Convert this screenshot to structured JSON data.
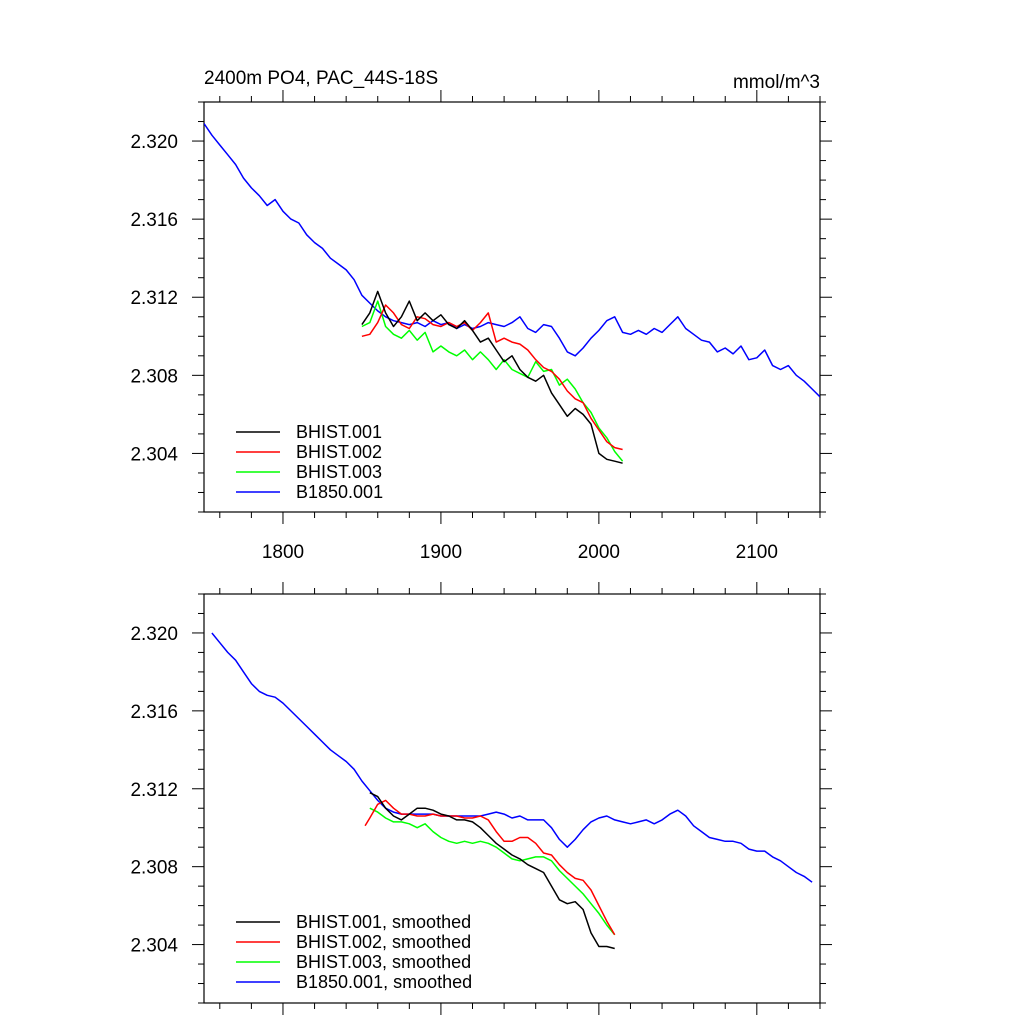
{
  "chart_data": [
    {
      "type": "line",
      "title": "2400m PO4, PAC_44S-18S",
      "units": "mmol/m^3",
      "xlim": [
        1750,
        2140
      ],
      "ylim": [
        2.301,
        2.322
      ],
      "xticks": [
        1800,
        1900,
        2000,
        2100
      ],
      "xtick_labels": [
        "1800",
        "1900",
        "2000",
        "2100"
      ],
      "yticks": [
        2.304,
        2.308,
        2.312,
        2.316,
        2.32
      ],
      "ytick_labels": [
        "2.304",
        "2.308",
        "2.312",
        "2.316",
        "2.320"
      ],
      "show_xtick_labels": true,
      "legend_position": "bottom-left",
      "series": [
        {
          "name": "BHIST.001",
          "color": "#000000",
          "x": [
            1850,
            1855,
            1860,
            1865,
            1870,
            1875,
            1880,
            1885,
            1890,
            1895,
            1900,
            1905,
            1910,
            1915,
            1920,
            1925,
            1930,
            1935,
            1940,
            1945,
            1950,
            1955,
            1960,
            1965,
            1970,
            1975,
            1980,
            1985,
            1990,
            1995,
            2000,
            2005,
            2010,
            2015
          ],
          "y": [
            2.3106,
            2.3112,
            2.3123,
            2.3112,
            2.3105,
            2.311,
            2.3118,
            2.3108,
            2.3112,
            2.3108,
            2.3111,
            2.3106,
            2.3104,
            2.3108,
            2.3103,
            2.3097,
            2.3099,
            2.3093,
            2.3087,
            2.309,
            2.3083,
            2.3079,
            2.3077,
            2.308,
            2.3071,
            2.3065,
            2.3059,
            2.3063,
            2.306,
            2.3055,
            2.304,
            2.3037,
            2.3036,
            2.3035
          ]
        },
        {
          "name": "BHIST.002",
          "color": "#ff0000",
          "x": [
            1850,
            1855,
            1860,
            1865,
            1870,
            1875,
            1880,
            1885,
            1890,
            1895,
            1900,
            1905,
            1910,
            1915,
            1920,
            1925,
            1930,
            1935,
            1940,
            1945,
            1950,
            1955,
            1960,
            1965,
            1970,
            1975,
            1980,
            1985,
            1990,
            1995,
            2000,
            2005,
            2010,
            2015
          ],
          "y": [
            2.31,
            2.3101,
            2.3107,
            2.3116,
            2.3112,
            2.3106,
            2.3104,
            2.311,
            2.3109,
            2.3106,
            2.3105,
            2.3107,
            2.3105,
            2.3107,
            2.3103,
            2.3107,
            2.3112,
            2.3097,
            2.3099,
            2.3097,
            2.3096,
            2.3093,
            2.3088,
            2.3084,
            2.3082,
            2.3078,
            2.3072,
            2.3068,
            2.3066,
            2.3058,
            2.3052,
            2.3046,
            2.3043,
            2.3042
          ]
        },
        {
          "name": "BHIST.003",
          "color": "#00ff00",
          "x": [
            1850,
            1855,
            1860,
            1865,
            1870,
            1875,
            1880,
            1885,
            1890,
            1895,
            1900,
            1905,
            1910,
            1915,
            1920,
            1925,
            1930,
            1935,
            1940,
            1945,
            1950,
            1955,
            1960,
            1965,
            1970,
            1975,
            1980,
            1985,
            1990,
            1995,
            2000,
            2005,
            2010,
            2015
          ],
          "y": [
            2.3105,
            2.3107,
            2.3118,
            2.3105,
            2.3101,
            2.3099,
            2.3103,
            2.3098,
            2.3102,
            2.3092,
            2.3095,
            2.3092,
            2.309,
            2.3093,
            2.3088,
            2.3092,
            2.3088,
            2.3083,
            2.3088,
            2.3083,
            2.3081,
            2.3079,
            2.3087,
            2.3082,
            2.3083,
            2.3075,
            2.3078,
            2.3073,
            2.3066,
            2.3061,
            2.3053,
            2.3048,
            2.3041,
            2.3036
          ]
        },
        {
          "name": "B1850.001",
          "color": "#0000ff",
          "x": [
            1750,
            1755,
            1760,
            1765,
            1770,
            1775,
            1780,
            1785,
            1790,
            1795,
            1800,
            1805,
            1810,
            1815,
            1820,
            1825,
            1830,
            1835,
            1840,
            1845,
            1850,
            1855,
            1860,
            1865,
            1870,
            1875,
            1880,
            1885,
            1890,
            1895,
            1900,
            1905,
            1910,
            1915,
            1920,
            1925,
            1930,
            1935,
            1940,
            1945,
            1950,
            1955,
            1960,
            1965,
            1970,
            1975,
            1980,
            1985,
            1990,
            1995,
            2000,
            2005,
            2010,
            2015,
            2020,
            2025,
            2030,
            2035,
            2040,
            2045,
            2050,
            2055,
            2060,
            2065,
            2070,
            2075,
            2080,
            2085,
            2090,
            2095,
            2100,
            2105,
            2110,
            2115,
            2120,
            2125,
            2130,
            2135,
            2140
          ],
          "y": [
            2.3209,
            2.3203,
            2.3198,
            2.3193,
            2.3188,
            2.3181,
            2.3176,
            2.3172,
            2.3167,
            2.317,
            2.3164,
            2.316,
            2.3158,
            2.3152,
            2.3148,
            2.3145,
            2.314,
            2.3137,
            2.3134,
            2.3129,
            2.3121,
            2.3117,
            2.3113,
            2.311,
            2.3108,
            2.3107,
            2.3106,
            2.3107,
            2.3105,
            2.3108,
            2.3106,
            2.3107,
            2.3104,
            2.3106,
            2.3104,
            2.3105,
            2.3107,
            2.3106,
            2.3105,
            2.3107,
            2.311,
            2.3104,
            2.3102,
            2.3106,
            2.3105,
            2.3099,
            2.3092,
            2.309,
            2.3094,
            2.3099,
            2.3103,
            2.3108,
            2.311,
            2.3102,
            2.3101,
            2.3103,
            2.3101,
            2.3104,
            2.3102,
            2.3106,
            2.311,
            2.3104,
            2.3101,
            2.3098,
            2.3097,
            2.3092,
            2.3094,
            2.3091,
            2.3095,
            2.3088,
            2.3089,
            2.3093,
            2.3085,
            2.3083,
            2.3085,
            2.308,
            2.3077,
            2.3073,
            2.3069
          ]
        }
      ]
    },
    {
      "type": "line",
      "title": "",
      "units": "",
      "xlim": [
        1750,
        2140
      ],
      "ylim": [
        2.301,
        2.322
      ],
      "xticks": [
        1800,
        1900,
        2000,
        2100
      ],
      "xtick_labels": [],
      "yticks": [
        2.304,
        2.308,
        2.312,
        2.316,
        2.32
      ],
      "ytick_labels": [
        "2.304",
        "2.308",
        "2.312",
        "2.316",
        "2.320"
      ],
      "show_xtick_labels": false,
      "legend_position": "bottom-left",
      "series": [
        {
          "name": "BHIST.001, smoothed",
          "color": "#000000",
          "x": [
            1855,
            1860,
            1865,
            1870,
            1875,
            1880,
            1885,
            1890,
            1895,
            1900,
            1905,
            1910,
            1915,
            1920,
            1925,
            1930,
            1935,
            1940,
            1945,
            1950,
            1955,
            1960,
            1965,
            1970,
            1975,
            1980,
            1985,
            1990,
            1995,
            2000,
            2005,
            2010
          ],
          "y": [
            2.3118,
            2.3116,
            2.311,
            2.3106,
            2.3104,
            2.3107,
            2.311,
            2.311,
            2.3109,
            2.3107,
            2.3106,
            2.3104,
            2.3104,
            2.3103,
            2.31,
            2.3096,
            2.3092,
            2.3089,
            2.3086,
            2.3084,
            2.3081,
            2.3079,
            2.3077,
            2.307,
            2.3063,
            2.3061,
            2.3062,
            2.3058,
            2.3046,
            2.3039,
            2.3039,
            2.3038
          ]
        },
        {
          "name": "BHIST.002, smoothed",
          "color": "#ff0000",
          "x": [
            1852,
            1855,
            1860,
            1865,
            1870,
            1875,
            1880,
            1885,
            1890,
            1895,
            1900,
            1905,
            1910,
            1915,
            1920,
            1925,
            1930,
            1935,
            1940,
            1945,
            1950,
            1955,
            1960,
            1965,
            1970,
            1975,
            1980,
            1985,
            1990,
            1995,
            2000,
            2005,
            2010
          ],
          "y": [
            2.3101,
            2.3105,
            2.3112,
            2.3114,
            2.311,
            2.3107,
            2.3107,
            2.3106,
            2.3106,
            2.3107,
            2.3106,
            2.3106,
            2.3106,
            2.3105,
            2.3105,
            2.3106,
            2.3104,
            2.3098,
            2.3093,
            2.3093,
            2.3095,
            2.3095,
            2.3092,
            2.3087,
            2.3086,
            2.3081,
            2.3077,
            2.3074,
            2.3073,
            2.3068,
            2.306,
            2.3052,
            2.3045
          ]
        },
        {
          "name": "BHIST.003, smoothed",
          "color": "#00ff00",
          "x": [
            1855,
            1860,
            1865,
            1870,
            1875,
            1880,
            1885,
            1890,
            1895,
            1900,
            1905,
            1910,
            1915,
            1920,
            1925,
            1930,
            1935,
            1940,
            1945,
            1950,
            1955,
            1960,
            1965,
            1970,
            1975,
            1980,
            1985,
            1990,
            1995,
            2000,
            2005,
            2010
          ],
          "y": [
            2.311,
            2.3108,
            2.3105,
            2.3103,
            2.3103,
            2.3102,
            2.31,
            2.3102,
            2.3098,
            2.3095,
            2.3093,
            2.3092,
            2.3093,
            2.3092,
            2.3093,
            2.3092,
            2.309,
            2.3087,
            2.3084,
            2.3083,
            2.3084,
            2.3085,
            2.3085,
            2.3083,
            2.3078,
            2.3074,
            2.307,
            2.3066,
            2.3061,
            2.3056,
            2.305,
            2.3045
          ]
        },
        {
          "name": "B1850.001, smoothed",
          "color": "#0000ff",
          "x": [
            1755,
            1760,
            1765,
            1770,
            1775,
            1780,
            1785,
            1790,
            1795,
            1800,
            1805,
            1810,
            1815,
            1820,
            1825,
            1830,
            1835,
            1840,
            1845,
            1850,
            1855,
            1860,
            1865,
            1870,
            1875,
            1880,
            1885,
            1890,
            1895,
            1900,
            1905,
            1910,
            1915,
            1920,
            1925,
            1930,
            1935,
            1940,
            1945,
            1950,
            1955,
            1960,
            1965,
            1970,
            1975,
            1980,
            1985,
            1990,
            1995,
            2000,
            2005,
            2010,
            2015,
            2020,
            2025,
            2030,
            2035,
            2040,
            2045,
            2050,
            2055,
            2060,
            2065,
            2070,
            2075,
            2080,
            2085,
            2090,
            2095,
            2100,
            2105,
            2110,
            2115,
            2120,
            2125,
            2130,
            2135
          ],
          "y": [
            2.32,
            2.3195,
            2.319,
            2.3186,
            2.318,
            2.3174,
            2.317,
            2.3168,
            2.3167,
            2.3164,
            2.316,
            2.3156,
            2.3152,
            2.3148,
            2.3144,
            2.314,
            2.3137,
            2.3134,
            2.313,
            2.3124,
            2.3119,
            2.3114,
            2.311,
            2.3108,
            2.3107,
            2.3107,
            2.3107,
            2.3107,
            2.3107,
            2.3106,
            2.3106,
            2.3106,
            2.3106,
            2.3106,
            2.3106,
            2.3107,
            2.3108,
            2.3107,
            2.3105,
            2.3106,
            2.3104,
            2.3104,
            2.3104,
            2.31,
            2.3094,
            2.309,
            2.3094,
            2.3099,
            2.3103,
            2.3105,
            2.3106,
            2.3104,
            2.3103,
            2.3102,
            2.3103,
            2.3104,
            2.3102,
            2.3104,
            2.3107,
            2.3109,
            2.3106,
            2.3101,
            2.3098,
            2.3095,
            2.3094,
            2.3093,
            2.3093,
            2.3092,
            2.3089,
            2.3088,
            2.3088,
            2.3085,
            2.3083,
            2.308,
            2.3077,
            2.3075,
            2.3072
          ]
        }
      ]
    }
  ]
}
